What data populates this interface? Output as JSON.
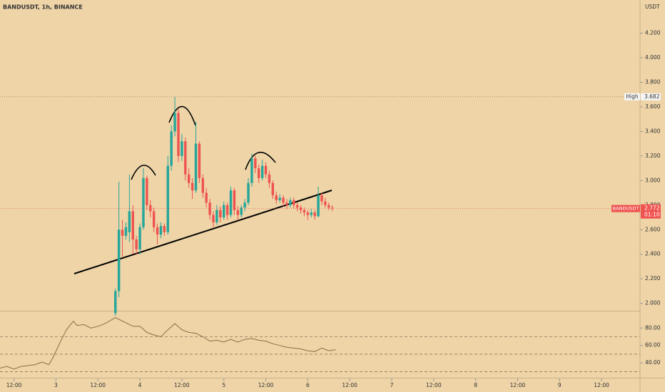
{
  "chart_data": [
    {
      "type": "candlestick",
      "title": "BANDUSDT, 1h, BINANCE",
      "unit": "USDT",
      "up_color": "#26a69a",
      "down_color": "#ef5350",
      "x": [
        17,
        18,
        19,
        20,
        21,
        22,
        23,
        24,
        25,
        26,
        27,
        28,
        29,
        30,
        31,
        32,
        33,
        34,
        35,
        36,
        37,
        38,
        39,
        40,
        41,
        42,
        43,
        44,
        45,
        46,
        47,
        48,
        49,
        50,
        51,
        52,
        53,
        54,
        55,
        56,
        57,
        58,
        59,
        60,
        61,
        62,
        63,
        64,
        65,
        66,
        67,
        68,
        69,
        70,
        71,
        72,
        73,
        74,
        75,
        76,
        77,
        78,
        79
      ],
      "open": [
        1.92,
        2.1,
        2.6,
        2.55,
        2.58,
        2.75,
        2.52,
        2.44,
        2.62,
        3.02,
        2.8,
        2.75,
        2.62,
        2.56,
        2.63,
        2.58,
        3.12,
        3.4,
        3.55,
        3.2,
        3.32,
        3.05,
        2.98,
        2.92,
        3.3,
        3.02,
        2.9,
        2.82,
        2.72,
        2.66,
        2.76,
        2.7,
        2.8,
        2.72,
        2.92,
        2.76,
        2.72,
        2.78,
        2.82,
        2.98,
        3.18,
        3.1,
        3.02,
        3.12,
        3.05,
        2.98,
        2.88,
        2.84,
        2.86,
        2.82,
        2.8,
        2.84,
        2.8,
        2.78,
        2.76,
        2.74,
        2.72,
        2.74,
        2.71,
        2.88,
        2.83,
        2.8,
        2.78
      ],
      "high": [
        2.12,
        2.99,
        2.68,
        2.66,
        3.05,
        2.8,
        2.55,
        2.65,
        3.1,
        3.04,
        2.84,
        2.78,
        2.65,
        2.66,
        2.65,
        3.2,
        3.45,
        3.68,
        3.58,
        3.38,
        3.35,
        3.1,
        3.02,
        3.48,
        3.32,
        3.05,
        2.94,
        2.85,
        2.75,
        2.8,
        2.79,
        2.83,
        2.82,
        2.95,
        2.94,
        2.79,
        2.8,
        2.85,
        3.02,
        3.22,
        3.2,
        3.13,
        3.17,
        3.15,
        3.08,
        3.0,
        2.91,
        2.89,
        2.88,
        2.85,
        2.86,
        2.86,
        2.82,
        2.8,
        2.78,
        2.76,
        2.77,
        2.76,
        2.95,
        2.9,
        2.86,
        2.82,
        2.8
      ],
      "low": [
        1.9,
        2.05,
        2.38,
        2.52,
        2.5,
        2.4,
        2.4,
        2.4,
        2.6,
        2.76,
        2.7,
        2.58,
        2.48,
        2.53,
        2.55,
        2.56,
        3.08,
        3.36,
        3.15,
        3.16,
        3.0,
        2.94,
        2.85,
        2.9,
        2.98,
        2.86,
        2.78,
        2.68,
        2.62,
        2.64,
        2.66,
        2.68,
        2.68,
        2.7,
        2.72,
        2.68,
        2.7,
        2.75,
        2.8,
        2.95,
        3.06,
        2.98,
        3.0,
        3.02,
        2.94,
        2.85,
        2.81,
        2.82,
        2.79,
        2.77,
        2.78,
        2.77,
        2.75,
        2.73,
        2.71,
        2.68,
        2.7,
        2.68,
        2.7,
        2.8,
        2.78,
        2.76,
        2.75
      ],
      "close": [
        2.1,
        2.6,
        2.55,
        2.62,
        2.75,
        2.52,
        2.44,
        2.62,
        3.02,
        2.8,
        2.75,
        2.62,
        2.56,
        2.63,
        2.58,
        3.12,
        3.4,
        3.55,
        3.2,
        3.32,
        3.05,
        2.98,
        2.92,
        3.3,
        3.02,
        2.9,
        2.82,
        2.72,
        2.66,
        2.76,
        2.7,
        2.8,
        2.72,
        2.92,
        2.76,
        2.72,
        2.78,
        2.82,
        2.98,
        3.18,
        3.1,
        3.02,
        3.12,
        3.05,
        2.98,
        2.88,
        2.84,
        2.86,
        2.82,
        2.8,
        2.84,
        2.8,
        2.78,
        2.76,
        2.74,
        2.72,
        2.74,
        2.71,
        2.88,
        2.83,
        2.8,
        2.78,
        2.772
      ],
      "xlim": [
        -16,
        167
      ],
      "xticks": [
        {
          "value": -12,
          "label": "12:00"
        },
        {
          "value": 0,
          "label": "3"
        },
        {
          "value": 12,
          "label": "12:00"
        },
        {
          "value": 24,
          "label": "4"
        },
        {
          "value": 36,
          "label": "12:00"
        },
        {
          "value": 48,
          "label": "5"
        },
        {
          "value": 60,
          "label": "12:00"
        },
        {
          "value": 72,
          "label": "6"
        },
        {
          "value": 84,
          "label": "12:00"
        },
        {
          "value": 96,
          "label": "7"
        },
        {
          "value": 108,
          "label": "12:00"
        },
        {
          "value": 120,
          "label": "8"
        },
        {
          "value": 132,
          "label": "12:00"
        },
        {
          "value": 144,
          "label": "9"
        },
        {
          "value": 156,
          "label": "12:00"
        }
      ],
      "ylim": [
        1.94,
        4.47
      ],
      "yticks": [
        {
          "value": 2.0,
          "label": "2.000"
        },
        {
          "value": 2.2,
          "label": "2.200"
        },
        {
          "value": 2.4,
          "label": "2.400"
        },
        {
          "value": 2.6,
          "label": "2.600"
        },
        {
          "value": 2.8,
          "label": "2.800"
        },
        {
          "value": 3.0,
          "label": "3.000"
        },
        {
          "value": 3.2,
          "label": "3.200"
        },
        {
          "value": 3.4,
          "label": "3.400"
        },
        {
          "value": 3.6,
          "label": "3.600"
        },
        {
          "value": 3.8,
          "label": "3.800"
        },
        {
          "value": 4.0,
          "label": "4.000"
        },
        {
          "value": 4.2,
          "label": "4.200"
        }
      ],
      "high_marker": {
        "label": "High",
        "value": 3.682
      },
      "last_price": {
        "symbol": "BANDUSDT",
        "value": 2.772,
        "countdown": "01:10",
        "color": "#ef5350"
      }
    },
    {
      "type": "line",
      "color": "#8a6f45",
      "x": [
        -16,
        -14,
        -12,
        -10,
        -8,
        -6,
        -4,
        -2,
        -1,
        1,
        3,
        5,
        6,
        8,
        10,
        12,
        14,
        17,
        18,
        20,
        22,
        24,
        26,
        28,
        30,
        32,
        34,
        36,
        38,
        40,
        42,
        44,
        46,
        48,
        50,
        52,
        54,
        56,
        58,
        60,
        62,
        64,
        66,
        68,
        70,
        72,
        74,
        76,
        78,
        80
      ],
      "values": [
        34,
        36,
        33,
        36,
        37,
        38,
        41,
        38,
        45,
        62,
        78,
        88,
        83,
        84,
        80,
        82,
        85,
        92,
        90,
        86,
        82,
        82,
        75,
        72,
        70,
        78,
        85,
        78,
        75,
        74,
        70,
        65,
        66,
        64,
        67,
        64,
        67,
        68,
        66,
        65,
        62,
        60,
        58,
        57,
        56,
        54,
        53,
        57,
        54,
        55
      ],
      "xlim": [
        -16,
        167
      ],
      "ylim": [
        23,
        99
      ],
      "yticks": [
        {
          "value": 40,
          "label": "40.00"
        },
        {
          "value": 60,
          "label": "60.00"
        },
        {
          "value": 80,
          "label": "80.00"
        }
      ],
      "hlines": [
        70,
        50,
        30
      ]
    }
  ]
}
